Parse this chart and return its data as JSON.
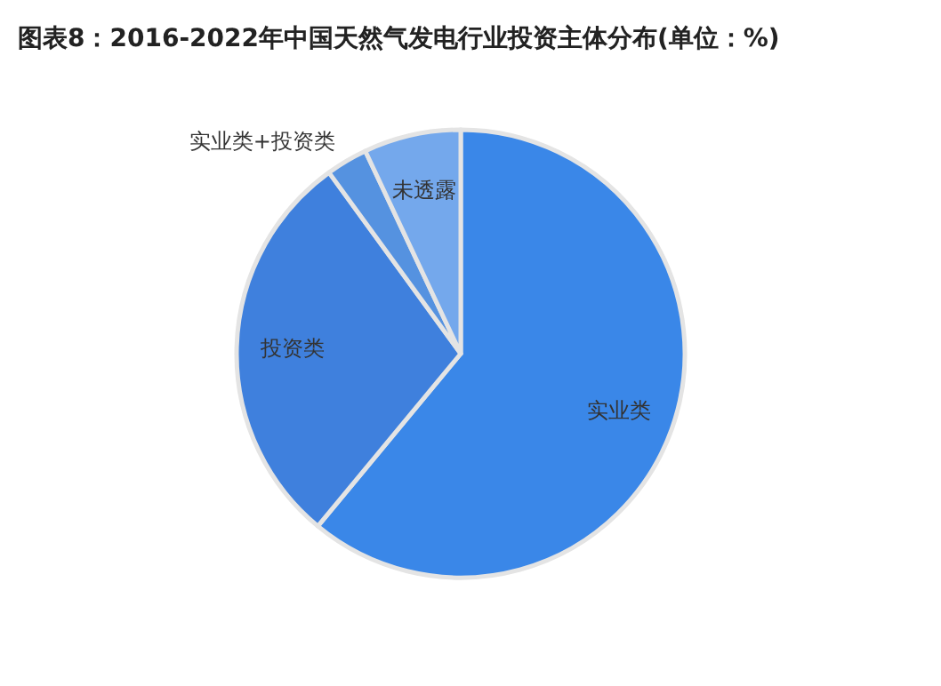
{
  "chart_data": {
    "type": "pie",
    "title": "图表8：2016-2022年中国天然气发电行业投资主体分布(单位：%)",
    "categories": [
      "实业类",
      "投资类",
      "实业类+投资类",
      "未透露"
    ],
    "values": [
      61,
      29,
      3,
      7
    ],
    "colors": [
      "#3a87e8",
      "#3f80dd",
      "#5592e0",
      "#74a8ec"
    ]
  }
}
